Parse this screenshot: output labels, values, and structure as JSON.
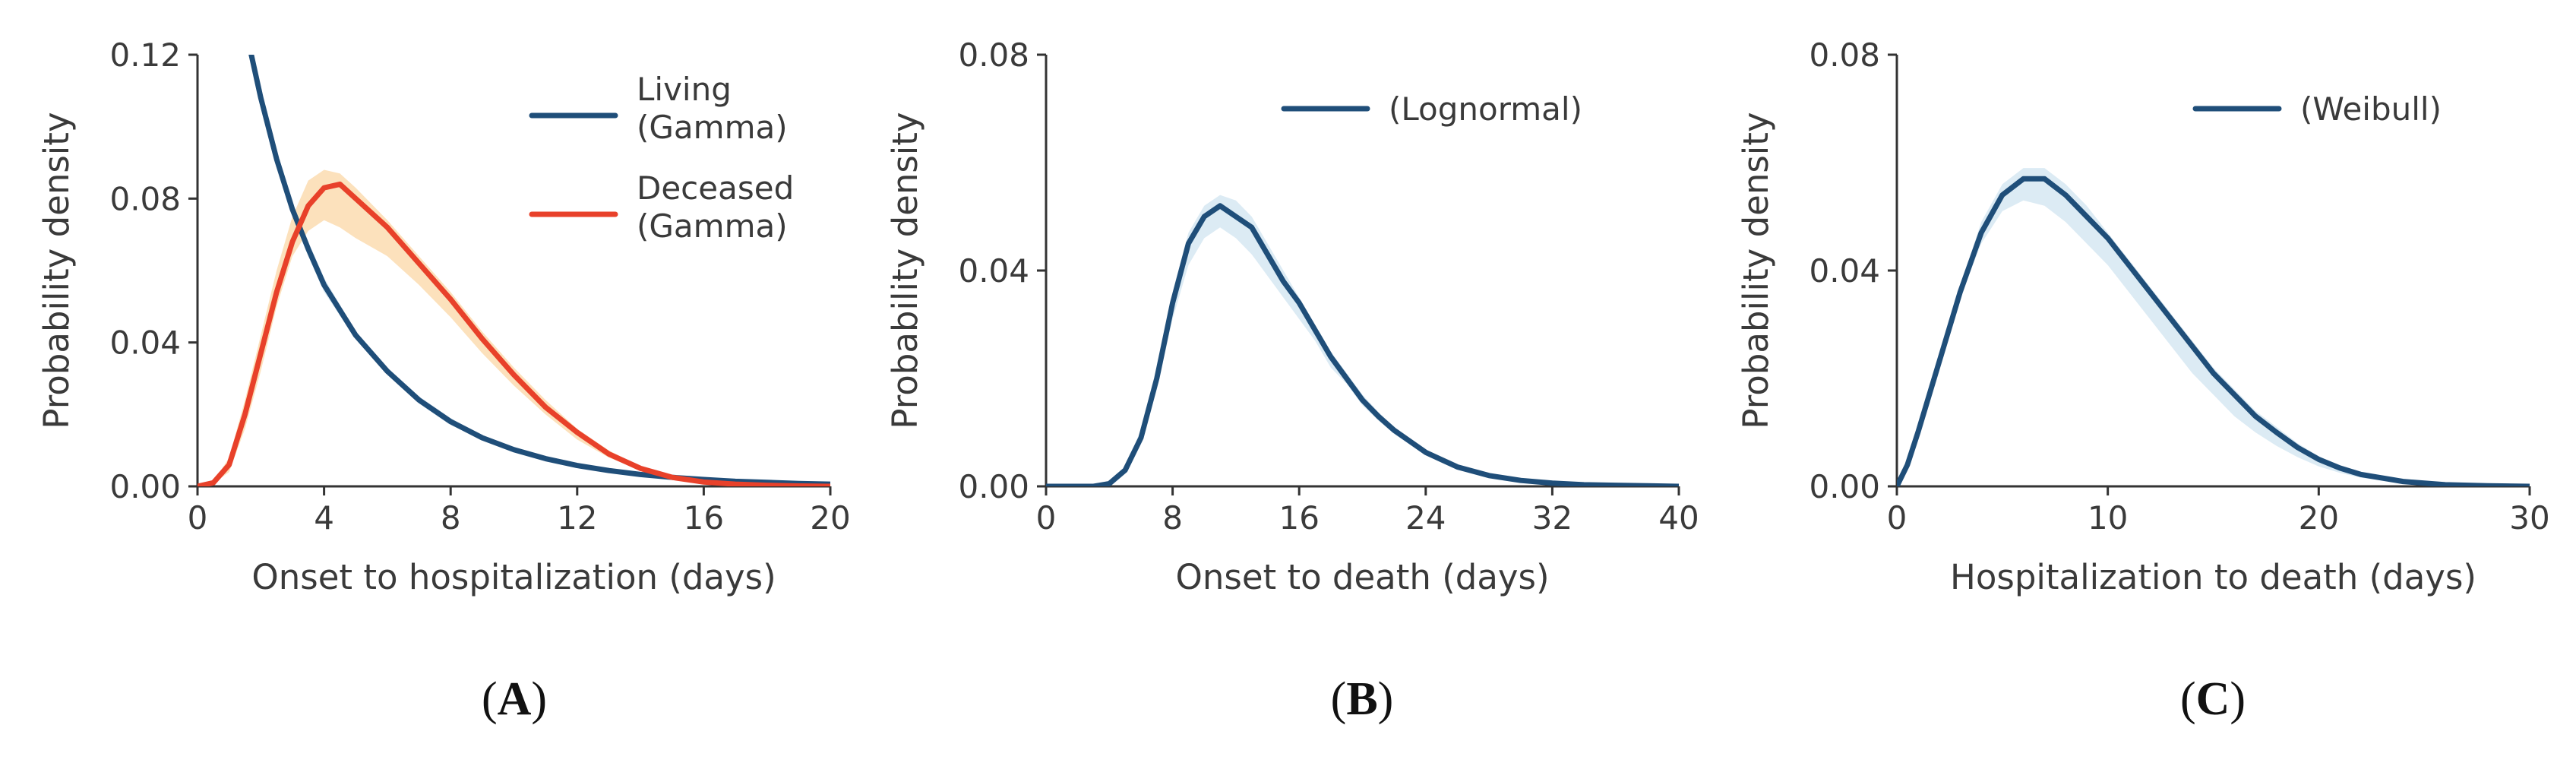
{
  "colors": {
    "blue": "#1f4e79",
    "blue_band": "#d6e8f2",
    "red": "#e8412a",
    "orange_band": "#fbdcb0",
    "axis": "#333333"
  },
  "chart_data": [
    {
      "type": "line",
      "panel_label": "A",
      "xlabel": "Onset to hospitalization (days)",
      "ylabel": "Probability density",
      "xlim": [
        0,
        20
      ],
      "ylim": [
        0,
        0.12
      ],
      "xticks": [
        0,
        4,
        8,
        12,
        16,
        20
      ],
      "yticks": [
        0,
        0.04,
        0.08,
        0.12
      ],
      "ytick_labels": [
        "0.00",
        "0.04",
        "0.08",
        "0.12"
      ],
      "legend_position": "top-right",
      "series": [
        {
          "name": "Living\n(Gamma)",
          "legend_lines": [
            "Living",
            "(Gamma)"
          ],
          "color": "#1f4e79",
          "x": [
            1.7,
            2,
            2.5,
            3,
            3.5,
            4,
            5,
            6,
            7,
            8,
            9,
            10,
            11,
            12,
            13,
            14,
            15,
            16,
            17,
            18,
            19,
            20
          ],
          "y": [
            0.12,
            0.108,
            0.091,
            0.077,
            0.066,
            0.056,
            0.042,
            0.032,
            0.024,
            0.018,
            0.0135,
            0.0102,
            0.0077,
            0.0058,
            0.0044,
            0.0033,
            0.0025,
            0.0019,
            0.0014,
            0.0011,
            0.0008,
            0.0006
          ],
          "band_lower": [
            0.118,
            0.106,
            0.089,
            0.075,
            0.064,
            0.054,
            0.041,
            0.031,
            0.023,
            0.017,
            0.013,
            0.0098,
            0.0074,
            0.0055,
            0.0042,
            0.0031,
            0.0024,
            0.0018,
            0.0013,
            0.001,
            0.0007,
            0.0005
          ],
          "band_upper": [
            0.12,
            0.11,
            0.093,
            0.079,
            0.068,
            0.058,
            0.043,
            0.033,
            0.025,
            0.019,
            0.014,
            0.0106,
            0.008,
            0.006,
            0.0046,
            0.0035,
            0.0026,
            0.002,
            0.0015,
            0.0012,
            0.0009,
            0.0007
          ]
        },
        {
          "name": "Deceased\n(Gamma)",
          "legend_lines": [
            "Deceased",
            "(Gamma)"
          ],
          "color": "#e8412a",
          "x": [
            0,
            0.5,
            1,
            1.5,
            2,
            2.5,
            3,
            3.5,
            4,
            4.5,
            5,
            6,
            7,
            8,
            9,
            10,
            11,
            12,
            13,
            14,
            15,
            16,
            17,
            18,
            19,
            20
          ],
          "y": [
            0,
            0.001,
            0.006,
            0.02,
            0.037,
            0.054,
            0.068,
            0.078,
            0.083,
            0.084,
            0.08,
            0.072,
            0.062,
            0.052,
            0.041,
            0.031,
            0.022,
            0.015,
            0.009,
            0.005,
            0.0025,
            0.0012,
            0.0006,
            0.0003,
            0.0001,
            0
          ],
          "band_lower": [
            0,
            0.0008,
            0.004,
            0.016,
            0.032,
            0.05,
            0.064,
            0.071,
            0.074,
            0.072,
            0.069,
            0.064,
            0.056,
            0.047,
            0.037,
            0.028,
            0.02,
            0.013,
            0.008,
            0.0045,
            0.0022,
            0.001,
            0.0005,
            0.0002,
            0.0001,
            0
          ],
          "band_upper": [
            0,
            0.0012,
            0.008,
            0.024,
            0.042,
            0.06,
            0.075,
            0.085,
            0.088,
            0.087,
            0.083,
            0.074,
            0.064,
            0.054,
            0.043,
            0.033,
            0.024,
            0.016,
            0.01,
            0.0055,
            0.0028,
            0.0014,
            0.0007,
            0.0004,
            0.0002,
            0
          ]
        }
      ]
    },
    {
      "type": "line",
      "panel_label": "B",
      "xlabel": "Onset to death (days)",
      "ylabel": "Probability density",
      "xlim": [
        0,
        40
      ],
      "ylim": [
        0,
        0.08
      ],
      "xticks": [
        0,
        8,
        16,
        24,
        32,
        40
      ],
      "yticks": [
        0,
        0.04,
        0.08
      ],
      "ytick_labels": [
        "0.00",
        "0.04",
        "0.08"
      ],
      "legend_position": "top-right",
      "series": [
        {
          "name": "(Lognormal)",
          "legend_lines": [
            "(Lognormal)"
          ],
          "color": "#1f4e79",
          "x": [
            0,
            3,
            4,
            5,
            6,
            7,
            8,
            9,
            10,
            11,
            12,
            13,
            14,
            15,
            16,
            17,
            18,
            19,
            20,
            21,
            22,
            24,
            26,
            28,
            30,
            32,
            34,
            36,
            38,
            40
          ],
          "y": [
            0,
            0,
            0.0005,
            0.003,
            0.009,
            0.02,
            0.034,
            0.045,
            0.05,
            0.052,
            0.05,
            0.048,
            0.043,
            0.038,
            0.034,
            0.029,
            0.024,
            0.02,
            0.016,
            0.013,
            0.0104,
            0.0063,
            0.0036,
            0.002,
            0.0011,
            0.0006,
            0.0003,
            0.0002,
            0.0001,
            0
          ],
          "band_lower": [
            0,
            0,
            0.0004,
            0.0025,
            0.008,
            0.018,
            0.031,
            0.041,
            0.046,
            0.048,
            0.046,
            0.043,
            0.039,
            0.035,
            0.031,
            0.027,
            0.022,
            0.019,
            0.015,
            0.0122,
            0.0097,
            0.0058,
            0.0033,
            0.0018,
            0.001,
            0.0005,
            0.0003,
            0.0001,
            0.0001,
            0
          ],
          "band_upper": [
            0,
            0,
            0.0006,
            0.0035,
            0.0105,
            0.022,
            0.036,
            0.047,
            0.052,
            0.054,
            0.053,
            0.05,
            0.045,
            0.04,
            0.035,
            0.03,
            0.025,
            0.021,
            0.017,
            0.0138,
            0.011,
            0.0067,
            0.0039,
            0.0022,
            0.0012,
            0.0007,
            0.0004,
            0.0002,
            0.0001,
            0
          ]
        }
      ]
    },
    {
      "type": "line",
      "panel_label": "C",
      "xlabel": "Hospitalization to death (days)",
      "ylabel": "Probability density",
      "xlim": [
        0,
        30
      ],
      "ylim": [
        0,
        0.08
      ],
      "xticks": [
        0,
        10,
        20,
        30
      ],
      "yticks": [
        0,
        0.04,
        0.08
      ],
      "ytick_labels": [
        "0.00",
        "0.04",
        "0.08"
      ],
      "legend_position": "top-right",
      "series": [
        {
          "name": "(Weibull)",
          "legend_lines": [
            "(Weibull)"
          ],
          "color": "#1f4e79",
          "x": [
            0,
            0.5,
            1,
            2,
            3,
            4,
            5,
            6,
            7,
            8,
            9,
            10,
            11,
            12,
            13,
            14,
            15,
            16,
            17,
            18,
            19,
            20,
            21,
            22,
            24,
            26,
            28,
            30
          ],
          "y": [
            0,
            0.004,
            0.01,
            0.023,
            0.036,
            0.047,
            0.054,
            0.057,
            0.057,
            0.054,
            0.05,
            0.046,
            0.041,
            0.036,
            0.031,
            0.026,
            0.021,
            0.017,
            0.013,
            0.01,
            0.0072,
            0.005,
            0.0034,
            0.0022,
            0.0009,
            0.0003,
            0.0001,
            0
          ],
          "band_lower": [
            0,
            0.003,
            0.009,
            0.022,
            0.035,
            0.045,
            0.051,
            0.053,
            0.052,
            0.049,
            0.045,
            0.041,
            0.036,
            0.031,
            0.026,
            0.021,
            0.017,
            0.013,
            0.01,
            0.0075,
            0.0054,
            0.0037,
            0.0025,
            0.0016,
            0.0006,
            0.0002,
            0.0001,
            0
          ],
          "band_upper": [
            0,
            0.005,
            0.011,
            0.024,
            0.037,
            0.049,
            0.056,
            0.059,
            0.059,
            0.056,
            0.052,
            0.047,
            0.042,
            0.037,
            0.032,
            0.027,
            0.022,
            0.018,
            0.014,
            0.011,
            0.008,
            0.0056,
            0.0038,
            0.0025,
            0.001,
            0.0004,
            0.0001,
            0
          ]
        }
      ]
    }
  ]
}
